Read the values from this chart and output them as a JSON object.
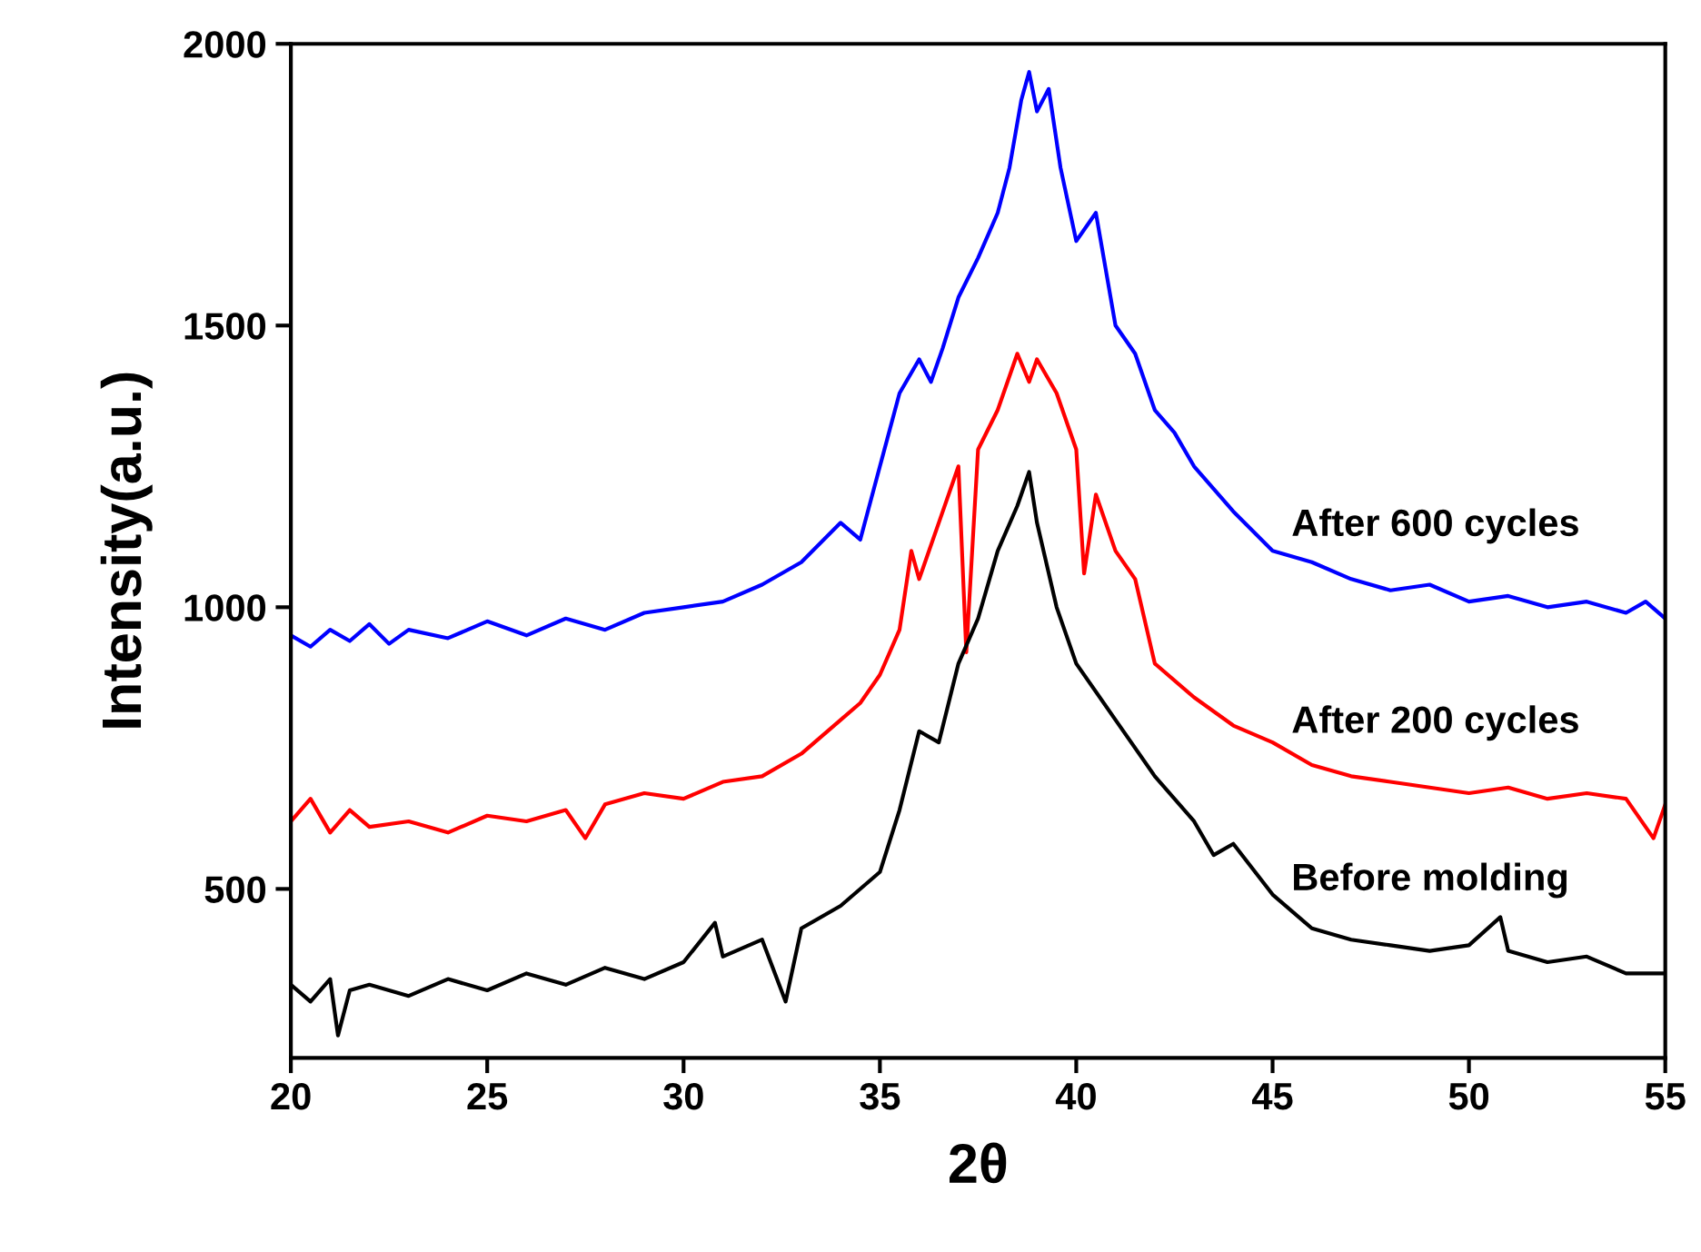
{
  "chart_data": {
    "type": "line",
    "xlabel": "2θ",
    "ylabel": "Intensity(a.u.)",
    "xlim": [
      20,
      55
    ],
    "ylim": [
      200,
      2000
    ],
    "xticks": [
      20,
      25,
      30,
      35,
      40,
      45,
      50,
      55
    ],
    "yticks": [
      500,
      1000,
      1500,
      2000
    ],
    "grid": false,
    "legend": false,
    "marker": "none",
    "line_style": "solid",
    "series": [
      {
        "name": "After 600 cycles",
        "color": "#0000ff",
        "x": [
          20,
          20.5,
          21,
          21.5,
          22,
          22.5,
          23,
          24,
          25,
          26,
          27,
          28,
          29,
          30,
          31,
          32,
          33,
          34,
          34.5,
          35,
          35.5,
          36,
          36.3,
          36.6,
          37,
          37.5,
          38,
          38.3,
          38.6,
          38.8,
          39,
          39.3,
          39.6,
          40,
          40.5,
          41,
          41.5,
          42,
          42.5,
          43,
          44,
          45,
          46,
          47,
          48,
          49,
          50,
          51,
          52,
          53,
          54,
          54.5,
          55
        ],
        "values": [
          950,
          930,
          960,
          940,
          970,
          935,
          960,
          945,
          975,
          950,
          980,
          960,
          990,
          1000,
          1010,
          1040,
          1080,
          1150,
          1120,
          1250,
          1380,
          1440,
          1400,
          1460,
          1550,
          1620,
          1700,
          1780,
          1900,
          1950,
          1880,
          1920,
          1780,
          1650,
          1700,
          1500,
          1450,
          1350,
          1310,
          1250,
          1170,
          1100,
          1080,
          1050,
          1030,
          1040,
          1010,
          1020,
          1000,
          1010,
          990,
          1010,
          980
        ]
      },
      {
        "name": "After 200 cycles",
        "color": "#ff0000",
        "x": [
          20,
          20.5,
          21,
          21.5,
          22,
          23,
          24,
          25,
          26,
          27,
          27.5,
          28,
          29,
          30,
          31,
          32,
          33,
          34,
          34.5,
          35,
          35.5,
          35.8,
          36,
          36.5,
          37,
          37.2,
          37.5,
          38,
          38.5,
          38.8,
          39,
          39.5,
          40,
          40.2,
          40.5,
          41,
          41.5,
          42,
          43,
          44,
          45,
          46,
          47,
          48,
          49,
          50,
          51,
          52,
          53,
          54,
          54.7,
          55
        ],
        "values": [
          620,
          660,
          600,
          640,
          610,
          620,
          600,
          630,
          620,
          640,
          590,
          650,
          670,
          660,
          690,
          700,
          740,
          800,
          830,
          880,
          960,
          1100,
          1050,
          1150,
          1250,
          920,
          1280,
          1350,
          1450,
          1400,
          1440,
          1380,
          1280,
          1060,
          1200,
          1100,
          1050,
          900,
          840,
          790,
          760,
          720,
          700,
          690,
          680,
          670,
          680,
          660,
          670,
          660,
          590,
          650
        ]
      },
      {
        "name": "Before molding",
        "color": "#000000",
        "x": [
          20,
          20.5,
          21,
          21.2,
          21.5,
          22,
          23,
          24,
          25,
          26,
          27,
          28,
          29,
          30,
          30.8,
          31,
          32,
          32.6,
          33,
          34,
          35,
          35.5,
          36,
          36.5,
          37,
          37.5,
          38,
          38.5,
          38.8,
          39,
          39.5,
          40,
          41,
          42,
          43,
          43.5,
          44,
          45,
          46,
          47,
          48,
          49,
          50,
          50.8,
          51,
          52,
          53,
          54,
          55
        ],
        "values": [
          330,
          300,
          340,
          240,
          320,
          330,
          310,
          340,
          320,
          350,
          330,
          360,
          340,
          370,
          440,
          380,
          410,
          300,
          430,
          470,
          530,
          640,
          780,
          760,
          900,
          980,
          1100,
          1180,
          1240,
          1150,
          1000,
          900,
          800,
          700,
          620,
          560,
          580,
          490,
          430,
          410,
          400,
          390,
          400,
          450,
          390,
          370,
          380,
          350,
          350
        ]
      }
    ]
  }
}
